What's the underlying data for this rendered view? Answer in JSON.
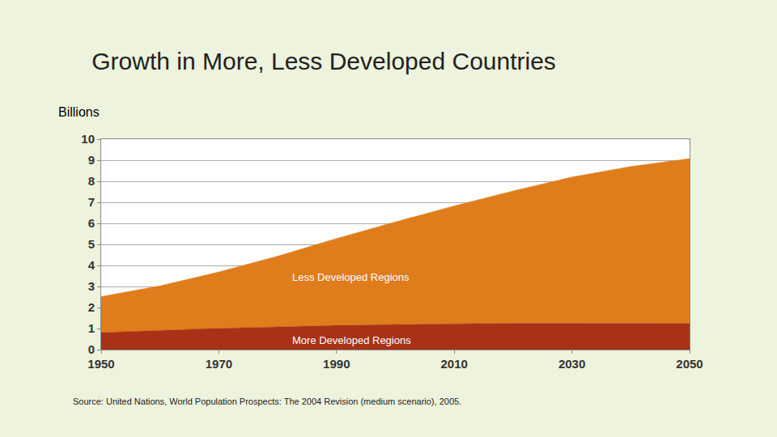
{
  "chart_data": {
    "type": "area",
    "title": "Growth in More, Less Developed Countries",
    "ylabel": "Billions",
    "source": "Source: United Nations, World Population Prospects: The 2004 Revision (medium scenario), 2005.",
    "x": [
      1950,
      1960,
      1970,
      1980,
      1990,
      2000,
      2010,
      2020,
      2030,
      2040,
      2050
    ],
    "series": [
      {
        "name": "More Developed Regions",
        "color": "#a83216",
        "values": [
          0.81,
          0.92,
          1.01,
          1.08,
          1.15,
          1.19,
          1.23,
          1.25,
          1.25,
          1.24,
          1.24
        ]
      },
      {
        "name": "Less Developed Regions",
        "color": "#df7d1c",
        "values": [
          1.71,
          2.11,
          2.68,
          3.36,
          4.13,
          4.88,
          5.6,
          6.29,
          6.95,
          7.46,
          7.84
        ]
      }
    ],
    "stacked": true,
    "xlim": [
      1950,
      2050
    ],
    "xticks": [
      1950,
      1970,
      1990,
      2010,
      2030,
      2050
    ],
    "ylim": [
      0,
      10
    ],
    "yticks": [
      0,
      1,
      2,
      3,
      4,
      5,
      6,
      7,
      8,
      9,
      10
    ],
    "grid": true
  }
}
